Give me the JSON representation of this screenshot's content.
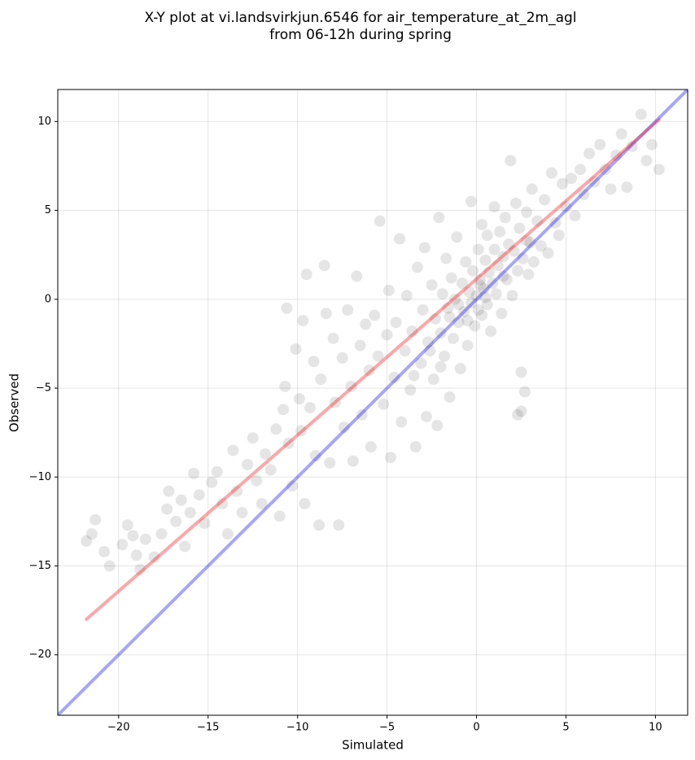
{
  "chart_data": {
    "type": "scatter",
    "title": "X-Y plot at vi.landsvirkjun.6546 for air_temperature_at_2m_agl",
    "subtitle": "from 06-12h during spring",
    "xlabel": "Simulated",
    "ylabel": "Observed",
    "xlim": [
      -23.4,
      11.8
    ],
    "ylim": [
      -23.4,
      11.8
    ],
    "xticks": [
      {
        "value": -20,
        "label": "−20"
      },
      {
        "value": -15,
        "label": "−15"
      },
      {
        "value": -10,
        "label": "−10"
      },
      {
        "value": -5,
        "label": "−5"
      },
      0,
      5,
      10
    ],
    "yticks": [
      {
        "value": -20,
        "label": "−20"
      },
      {
        "value": -15,
        "label": "−15"
      },
      {
        "value": -10,
        "label": "−10"
      },
      {
        "value": -5,
        "label": "−5"
      },
      0,
      5,
      10
    ],
    "grid": true,
    "color": "#000000",
    "point_alpha": 0.1,
    "x": [
      -21.8,
      -21.5,
      -21.3,
      -20.8,
      -20.5,
      -19.8,
      -19.5,
      -19.2,
      -19,
      -18.8,
      -18.5,
      -18,
      -17.6,
      -17.3,
      -17.2,
      -16.8,
      -16.5,
      -16.3,
      -16,
      -15.8,
      -15.5,
      -15.2,
      -14.8,
      -14.5,
      -14.2,
      -13.9,
      -13.6,
      -13.4,
      -13.1,
      -12.8,
      -12.5,
      -12.3,
      -12,
      -11.8,
      -11.5,
      -11.2,
      -11,
      -10.8,
      -10.7,
      -10.6,
      -10.5,
      -10.3,
      -10.1,
      -9.9,
      -9.8,
      -9.7,
      -9.6,
      -9.5,
      -9.3,
      -9.1,
      -9,
      -8.8,
      -8.7,
      -8.5,
      -8.4,
      -8.2,
      -8,
      -7.9,
      -7.7,
      -7.5,
      -7.4,
      -7.2,
      -7,
      -6.9,
      -6.7,
      -6.5,
      -6.4,
      -6.2,
      -6,
      -5.9,
      -5.7,
      -5.5,
      -5.4,
      -5.2,
      -5,
      -4.9,
      -4.8,
      -4.6,
      -4.5,
      -4.3,
      -4.2,
      -4,
      -3.9,
      -3.7,
      -3.6,
      -3.4,
      -3.3,
      -3.1,
      -3,
      -2.9,
      -2.8,
      -2.7,
      -2.5,
      -2.4,
      -2.3,
      -2.2,
      -2.1,
      -2,
      -1.9,
      -1.8,
      -1.7,
      -1.6,
      -1.5,
      -1.4,
      -1.3,
      -1.2,
      -1.1,
      -1,
      -0.9,
      -0.8,
      -0.7,
      -0.6,
      -0.5,
      -0.4,
      -0.3,
      -0.3,
      -0.2,
      -0.1,
      0,
      0.1,
      0.1,
      0.2,
      0.3,
      0.3,
      0.4,
      0.5,
      0.6,
      0.6,
      0.7,
      0.8,
      0.9,
      1,
      1,
      1.1,
      1.2,
      1.3,
      1.4,
      1.5,
      1.6,
      1.7,
      1.8,
      1.9,
      2,
      2.1,
      2.2,
      2.3,
      2.3,
      2.4,
      2.5,
      2.5,
      2.6,
      2.7,
      2.8,
      2.9,
      3,
      3.1,
      3.2,
      3.4,
      3.6,
      3.8,
      4,
      4.2,
      4.4,
      4.6,
      4.8,
      5,
      5.3,
      5.5,
      5.8,
      6,
      6.3,
      6.6,
      6.9,
      7.2,
      7.5,
      7.8,
      8.1,
      8.4,
      8.7,
      9.2,
      9.5,
      9.8,
      10.2,
      -2,
      -3.5,
      -2.6,
      -1.5,
      -0.5,
      0.2,
      1.5,
      2.8,
      -1,
      0.5
    ],
    "values": [
      -13.6,
      -13.2,
      -12.4,
      -14.2,
      -15,
      -13.8,
      -12.7,
      -13.3,
      -14.4,
      -15.2,
      -13.5,
      -14.5,
      -13.2,
      -11.8,
      -10.8,
      -12.5,
      -11.3,
      -13.9,
      -12,
      -9.8,
      -11,
      -12.6,
      -10.3,
      -9.7,
      -11.5,
      -13.2,
      -8.5,
      -10.8,
      -12,
      -9.3,
      -7.8,
      -10.2,
      -11.5,
      -8.7,
      -9.6,
      -7.3,
      -12.2,
      -6.2,
      -4.9,
      -0.5,
      -8.1,
      -10.5,
      -2.8,
      -5.6,
      -7.4,
      -1.2,
      -11.5,
      1.4,
      -6.1,
      -3.5,
      -8.8,
      -12.7,
      -4.5,
      1.9,
      -0.8,
      -9.2,
      -2.2,
      -5.8,
      -12.7,
      -3.3,
      -7.2,
      -0.6,
      -4.9,
      -9.1,
      1.3,
      -2.6,
      -6.5,
      -1.4,
      -4,
      -8.3,
      -0.9,
      -3.2,
      4.4,
      -5.9,
      -2,
      0.5,
      -8.9,
      -4.4,
      -1.3,
      3.4,
      -6.9,
      -2.9,
      0.2,
      -5.1,
      -1.8,
      -8.3,
      1.8,
      -3.6,
      -0.6,
      2.9,
      -6.6,
      -2.4,
      0.8,
      -4.5,
      -1.1,
      -7.1,
      4.6,
      -1.9,
      0.3,
      -3.2,
      2.3,
      -0.5,
      -5.5,
      1.2,
      -2.2,
      0,
      3.5,
      -1.3,
      -3.9,
      0.9,
      -0.7,
      2.1,
      -2.6,
      0.4,
      5.5,
      -0.2,
      1.6,
      -1.5,
      0.2,
      2.8,
      -0.6,
      1.1,
      4.2,
      -0.9,
      0.6,
      2.2,
      -0.3,
      3.6,
      1.5,
      -1.8,
      0.9,
      2.8,
      5.2,
      0.3,
      1.9,
      3.8,
      -0.8,
      2.4,
      4.6,
      1.1,
      3.1,
      7.8,
      0.2,
      2.7,
      5.4,
      -6.5,
      1.6,
      4,
      -4.1,
      -6.3,
      2.3,
      -5.2,
      4.9,
      1.4,
      3.2,
      6.2,
      2.1,
      4.4,
      3,
      5.6,
      2.6,
      7.1,
      4.3,
      3.6,
      6.5,
      5.2,
      6.8,
      4.7,
      7.3,
      5.9,
      8.2,
      6.6,
      8.7,
      7.3,
      6.2,
      8.1,
      9.3,
      6.3,
      8.6,
      10.4,
      7.8,
      8.7,
      7.3,
      -3.8,
      -4.3,
      -2.9,
      -1,
      -1.2,
      0.8,
      1.3,
      3.3,
      -0.3,
      0.1
    ],
    "lines": [
      {
        "color": "#0000ff",
        "alpha": 0.35,
        "x": [
          -23.4,
          11.8
        ],
        "values": [
          -23.4,
          11.8
        ]
      },
      {
        "color": "#ff0000",
        "alpha": 0.35,
        "x": [
          -21.8,
          10.2
        ],
        "values": [
          -18,
          10.1
        ]
      }
    ]
  }
}
